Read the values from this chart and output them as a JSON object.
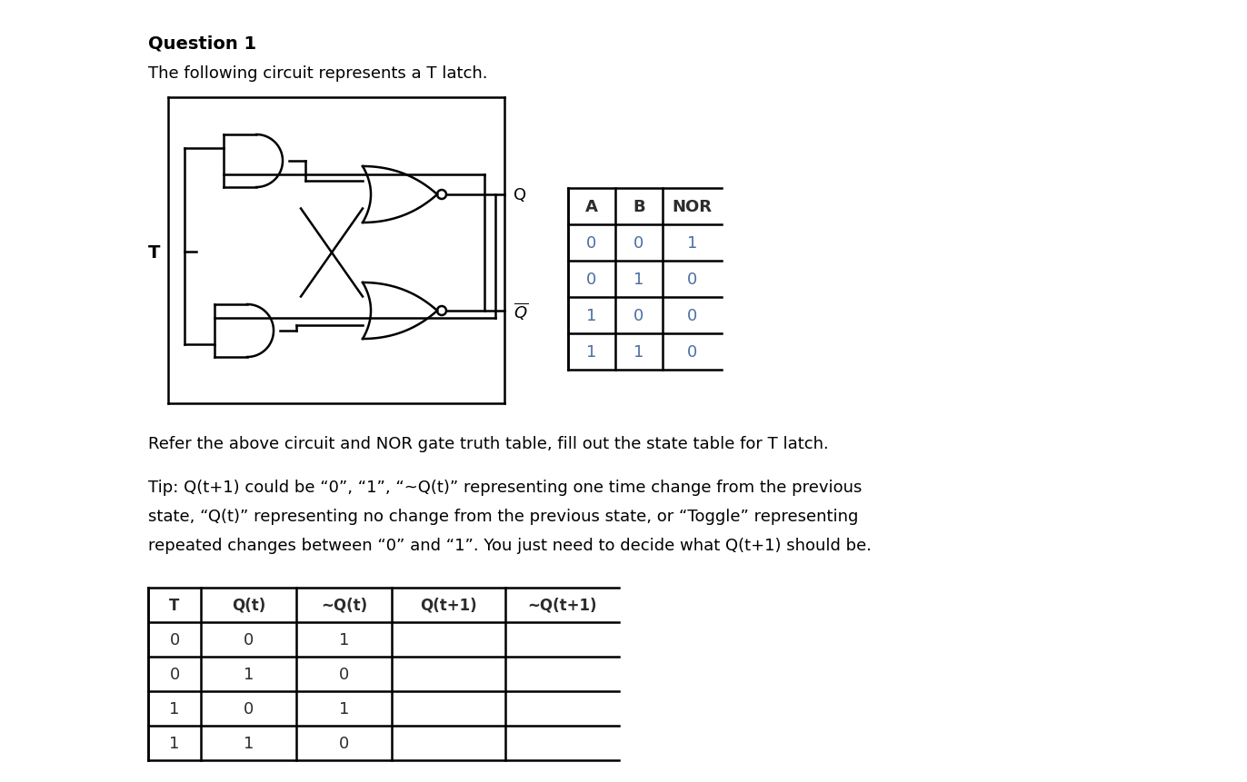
{
  "title": "Question 1",
  "subtitle": "The following circuit represents a T latch.",
  "text1": "Refer the above circuit and NOR gate truth table, fill out the state table for T latch.",
  "text2_line1": "Tip: Q(t+1) could be “0”, “1”, “~Q(t)” representing one time change from the previous",
  "text2_line2": "state, “Q(t)” representing no change from the previous state, or “Toggle” representing",
  "text2_line3": "repeated changes between “0” and “1”. You just need to decide what Q(t+1) should be.",
  "nor_table_headers": [
    "A",
    "B",
    "NOR"
  ],
  "nor_table_data": [
    [
      0,
      0,
      1
    ],
    [
      0,
      1,
      0
    ],
    [
      1,
      0,
      0
    ],
    [
      1,
      1,
      0
    ]
  ],
  "state_table_headers": [
    "T",
    "Q(t)",
    "~Q(t)",
    "Q(t+1)",
    "~Q(t+1)"
  ],
  "state_table_data": [
    [
      0,
      0,
      1,
      "",
      ""
    ],
    [
      0,
      1,
      0,
      "",
      ""
    ],
    [
      1,
      0,
      1,
      "",
      ""
    ],
    [
      1,
      1,
      0,
      "",
      ""
    ]
  ],
  "bg_color": "#ffffff",
  "text_color": "#000000",
  "table_num_color": "#4a6fa5",
  "line_color": "#000000"
}
